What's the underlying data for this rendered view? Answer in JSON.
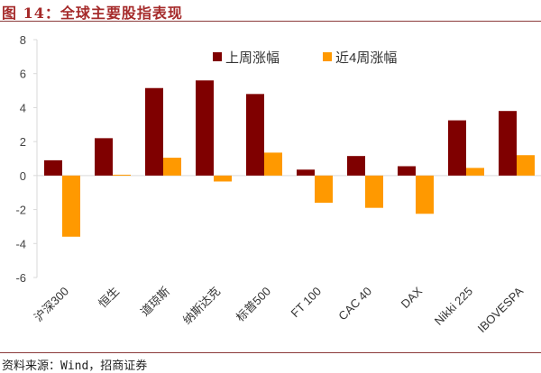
{
  "header": {
    "title": "图 14：全球主要股指表现"
  },
  "footer": {
    "source": "资料来源：Wind，招商证券"
  },
  "chart_data": {
    "type": "bar",
    "title": "全球主要股指表现",
    "xlabel": "",
    "ylabel": "",
    "ylim": [
      -6,
      8
    ],
    "yticks": [
      -6,
      -4,
      -2,
      0,
      2,
      4,
      6,
      8
    ],
    "grid": false,
    "legend_position": "top-right",
    "categories": [
      "沪深300",
      "恒生",
      "道琼斯",
      "纳斯达克",
      "标普500",
      "FT 100",
      "CAC 40",
      "DAX",
      "Nikki 225",
      "IBOVESPA"
    ],
    "series": [
      {
        "name": "上周涨幅",
        "color": "#7f0000",
        "values": [
          0.9,
          2.2,
          5.15,
          5.6,
          4.8,
          0.35,
          1.15,
          0.55,
          3.25,
          3.8
        ]
      },
      {
        "name": "近4周涨幅",
        "color": "#ff9900",
        "values": [
          -3.6,
          0.05,
          1.05,
          -0.35,
          1.35,
          -1.6,
          -1.9,
          -2.25,
          0.45,
          1.2
        ]
      }
    ]
  }
}
